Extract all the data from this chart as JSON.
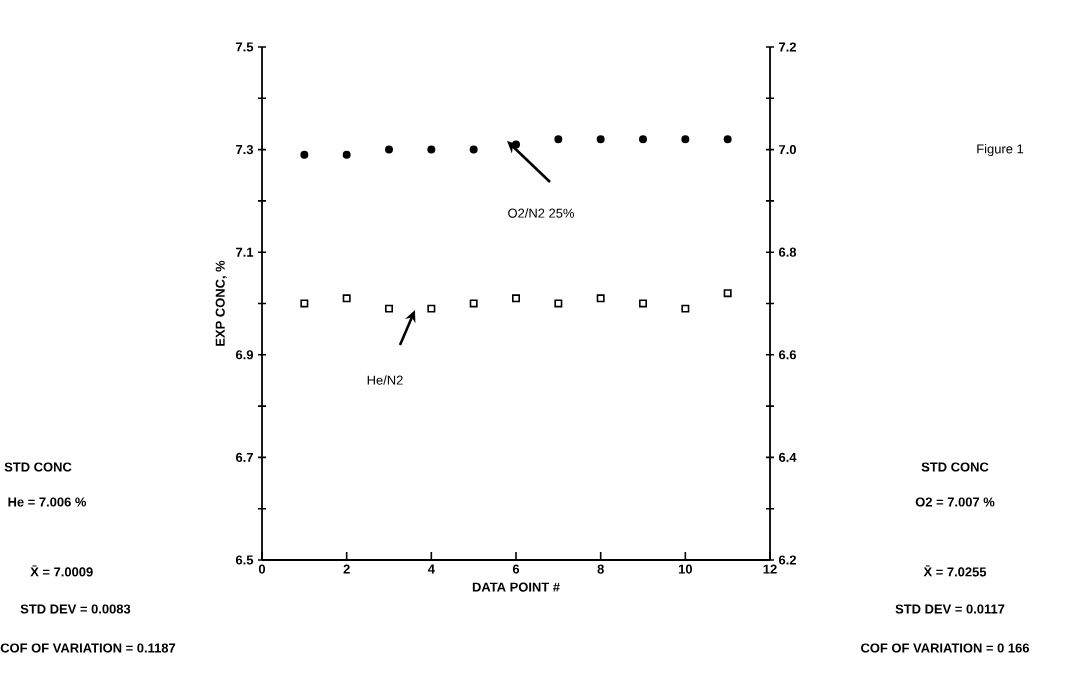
{
  "chart_data": {
    "type": "scatter",
    "xlabel": "DATA POINT #",
    "ylabel": "EXP CONC, %",
    "x": [
      1,
      2,
      3,
      4,
      5,
      6,
      7,
      8,
      9,
      10,
      11
    ],
    "series": [
      {
        "color": "#000000",
        "marker": "square",
        "values": [
          7.0,
          7.01,
          6.99,
          6.99,
          7.0,
          7.01,
          7.0,
          7.01,
          7.0,
          6.99,
          7.02
        ]
      },
      {
        "color": "#000000",
        "marker": "circle",
        "axis": "y2",
        "values": [
          6.99,
          6.99,
          7.0,
          7.0,
          7.0,
          7.01,
          7.02,
          7.02,
          7.02,
          7.02,
          7.02
        ]
      }
    ],
    "xlim": [
      0,
      12
    ],
    "xticks": [
      0,
      2,
      4,
      6,
      8,
      10,
      12
    ],
    "ylim": [
      6.5,
      7.5
    ],
    "yticks": [
      6.5,
      {
        "value": 6.6,
        "label": null
      },
      6.7,
      {
        "value": 6.8,
        "label": null
      },
      6.9,
      {
        "value": 7.0,
        "label": null
      },
      7.1,
      {
        "value": 7.2,
        "label": null
      },
      7.3,
      {
        "value": 7.4,
        "label": null
      },
      7.5
    ],
    "y2lim": [
      6.2,
      7.2
    ],
    "y2ticks": [
      6.2,
      {
        "value": 6.3,
        "label": null
      },
      6.4,
      {
        "value": 6.5,
        "label": null
      },
      6.6,
      {
        "value": 6.7,
        "label": null
      },
      6.8,
      {
        "value": 6.9,
        "label": null
      },
      {
        "value": 7.0,
        "label": "7.0"
      },
      {
        "value": 7.1,
        "label": null
      },
      7.2
    ],
    "annotations": [
      "O2/N2 25%",
      "He/N2",
      "Figure 1",
      "STD CONC",
      "He = 7.006 %",
      "X̄ = 7.0009",
      "STD DEV = 0.0083",
      "COF OF VARIATION = 0.1187",
      "STD CONC",
      "O2 = 7.007 %",
      "X̄ = 7.0255",
      "STD DEV = 0.0117",
      "COF OF VARIATION = 0 166"
    ]
  }
}
